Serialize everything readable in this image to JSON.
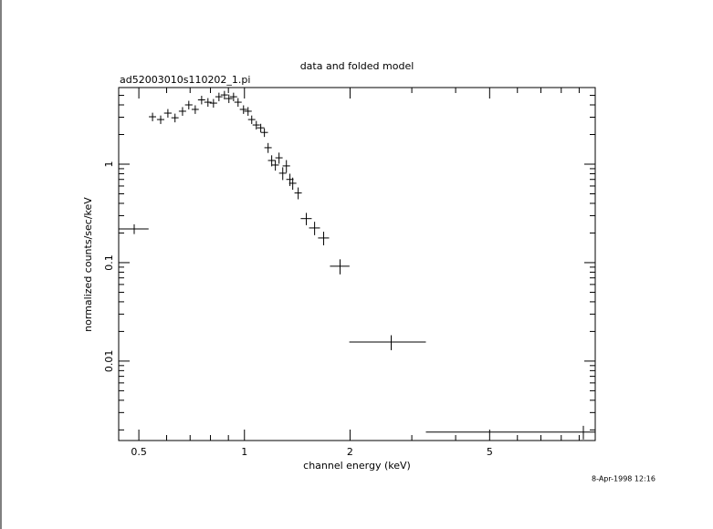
{
  "chart_data": {
    "type": "scatter",
    "title": "data and folded model",
    "subtitle": "ad52003010s110202_1.pi",
    "x_label": "channel energy (keV)",
    "y_label": "normalized counts/sec/keV",
    "timestamp": "8-Apr-1998 12:16",
    "x_log": true,
    "y_log": true,
    "xlim": [
      0.438,
      10
    ],
    "ylim": [
      0.00156,
      6
    ],
    "xticks": [
      0.5,
      1,
      2,
      5
    ],
    "xticks_minor": [
      0.6,
      0.7,
      0.8,
      0.9,
      3,
      4,
      6,
      7,
      8,
      9
    ],
    "yticks": [
      0.01,
      0.1,
      1
    ],
    "yticks_minor": [
      0.002,
      0.003,
      0.004,
      0.005,
      0.006,
      0.007,
      0.008,
      0.009,
      0.02,
      0.03,
      0.04,
      0.05,
      0.06,
      0.07,
      0.08,
      0.09,
      0.2,
      0.3,
      0.4,
      0.5,
      0.6,
      0.7,
      0.8,
      0.9,
      2,
      3,
      4,
      5
    ],
    "color": "#000000",
    "x": [
      0.485,
      0.547,
      0.577,
      0.605,
      0.634,
      0.666,
      0.694,
      0.724,
      0.755,
      0.787,
      0.816,
      0.846,
      0.877,
      0.903,
      0.931,
      0.959,
      0.994,
      1.024,
      1.049,
      1.081,
      1.113,
      1.14,
      1.168,
      1.196,
      1.225,
      1.255,
      1.286,
      1.317,
      1.348,
      1.373,
      1.423,
      1.501,
      1.585,
      1.682,
      1.873,
      2.62,
      9.25
    ],
    "xerr_minus": [
      0.047,
      0.013,
      0.014,
      0.015,
      0.015,
      0.016,
      0.017,
      0.017,
      0.018,
      0.019,
      0.02,
      0.02,
      0.021,
      0.022,
      0.022,
      0.023,
      0.024,
      0.025,
      0.025,
      0.026,
      0.027,
      0.027,
      0.028,
      0.029,
      0.029,
      0.03,
      0.031,
      0.032,
      0.032,
      0.033,
      0.034,
      0.054,
      0.057,
      0.061,
      0.12,
      0.63,
      5.96
    ],
    "xerr_plus": [
      0.048,
      0.013,
      0.014,
      0.015,
      0.015,
      0.016,
      0.017,
      0.017,
      0.018,
      0.019,
      0.02,
      0.02,
      0.021,
      0.022,
      0.022,
      0.023,
      0.024,
      0.025,
      0.025,
      0.026,
      0.027,
      0.027,
      0.028,
      0.029,
      0.029,
      0.03,
      0.031,
      0.032,
      0.032,
      0.033,
      0.034,
      0.054,
      0.057,
      0.061,
      0.12,
      0.67,
      0.75
    ],
    "values": [
      0.22,
      3.03,
      2.84,
      3.3,
      2.96,
      3.45,
      4.0,
      3.6,
      4.5,
      4.26,
      4.17,
      4.84,
      5.05,
      4.64,
      4.84,
      4.26,
      3.6,
      3.45,
      2.84,
      2.5,
      2.34,
      2.1,
      1.47,
      1.09,
      0.98,
      1.16,
      0.81,
      0.96,
      0.7,
      0.64,
      0.51,
      0.28,
      0.225,
      0.178,
      0.092,
      0.0156,
      0.0019
    ],
    "yerr": [
      0.025,
      0.3,
      0.28,
      0.33,
      0.3,
      0.35,
      0.4,
      0.36,
      0.45,
      0.43,
      0.42,
      0.48,
      0.5,
      0.46,
      0.48,
      0.43,
      0.36,
      0.35,
      0.28,
      0.25,
      0.23,
      0.21,
      0.17,
      0.14,
      0.12,
      0.15,
      0.12,
      0.14,
      0.1,
      0.09,
      0.07,
      0.04,
      0.035,
      0.028,
      0.016,
      0.0027,
      0.0003
    ]
  }
}
